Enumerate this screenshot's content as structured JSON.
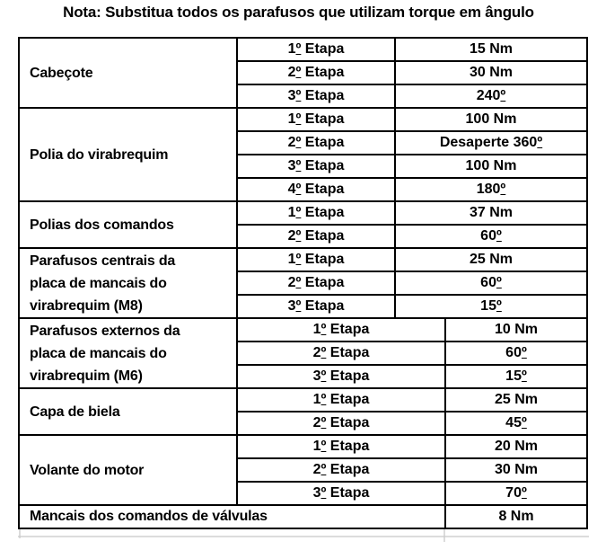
{
  "title": "Nota: Substitua todos os parafusos que utilizam torque em ângulo",
  "colors": {
    "border": "#000000",
    "text": "#000000",
    "background": "#ffffff",
    "scan_artifact": "#c9c9c9"
  },
  "table": {
    "sections": [
      {
        "label": "Cabeçote",
        "rows": [
          {
            "etapa": "1º Etapa",
            "valor": "15 Nm"
          },
          {
            "etapa": "2º Etapa",
            "valor": "30 Nm"
          },
          {
            "etapa": "3º Etapa",
            "valor": "240º"
          }
        ]
      },
      {
        "label": "Polia do virabrequim",
        "rows": [
          {
            "etapa": "1º Etapa",
            "valor": "100 Nm"
          },
          {
            "etapa": "2º Etapa",
            "valor": "Desaperte 360º"
          },
          {
            "etapa": "3º Etapa",
            "valor": "100 Nm"
          },
          {
            "etapa": "4º Etapa",
            "valor": "180º"
          }
        ]
      },
      {
        "label": "Polias dos comandos",
        "rows": [
          {
            "etapa": "1º Etapa",
            "valor": "37 Nm"
          },
          {
            "etapa": "2º Etapa",
            "valor": "60º"
          }
        ]
      },
      {
        "label": "Parafusos centrais da placa de mancais do virabrequim (M8)",
        "rows": [
          {
            "etapa": "1º Etapa",
            "valor": "25 Nm"
          },
          {
            "etapa": "2º Etapa",
            "valor": "60º"
          },
          {
            "etapa": "3º Etapa",
            "valor": "15º"
          }
        ]
      },
      {
        "label": "Parafusos externos da placa de mancais do virabrequim (M6)",
        "rows": [
          {
            "etapa": "1º Etapa",
            "valor": "10 Nm"
          },
          {
            "etapa": "2º Etapa",
            "valor": "60º"
          },
          {
            "etapa": "3º Etapa",
            "valor": "15º"
          }
        ]
      },
      {
        "label": "Capa de biela",
        "rows": [
          {
            "etapa": "1º Etapa",
            "valor": "25 Nm"
          },
          {
            "etapa": "2º Etapa",
            "valor": "45º"
          }
        ]
      },
      {
        "label": "Volante do motor",
        "rows": [
          {
            "etapa": "1º Etapa",
            "valor": "20 Nm"
          },
          {
            "etapa": "2º Etapa",
            "valor": "30 Nm"
          },
          {
            "etapa": "3º Etapa",
            "valor": "70º"
          }
        ]
      },
      {
        "label": "Mancais dos comandos de válvulas",
        "valor": "8 Nm"
      }
    ]
  }
}
